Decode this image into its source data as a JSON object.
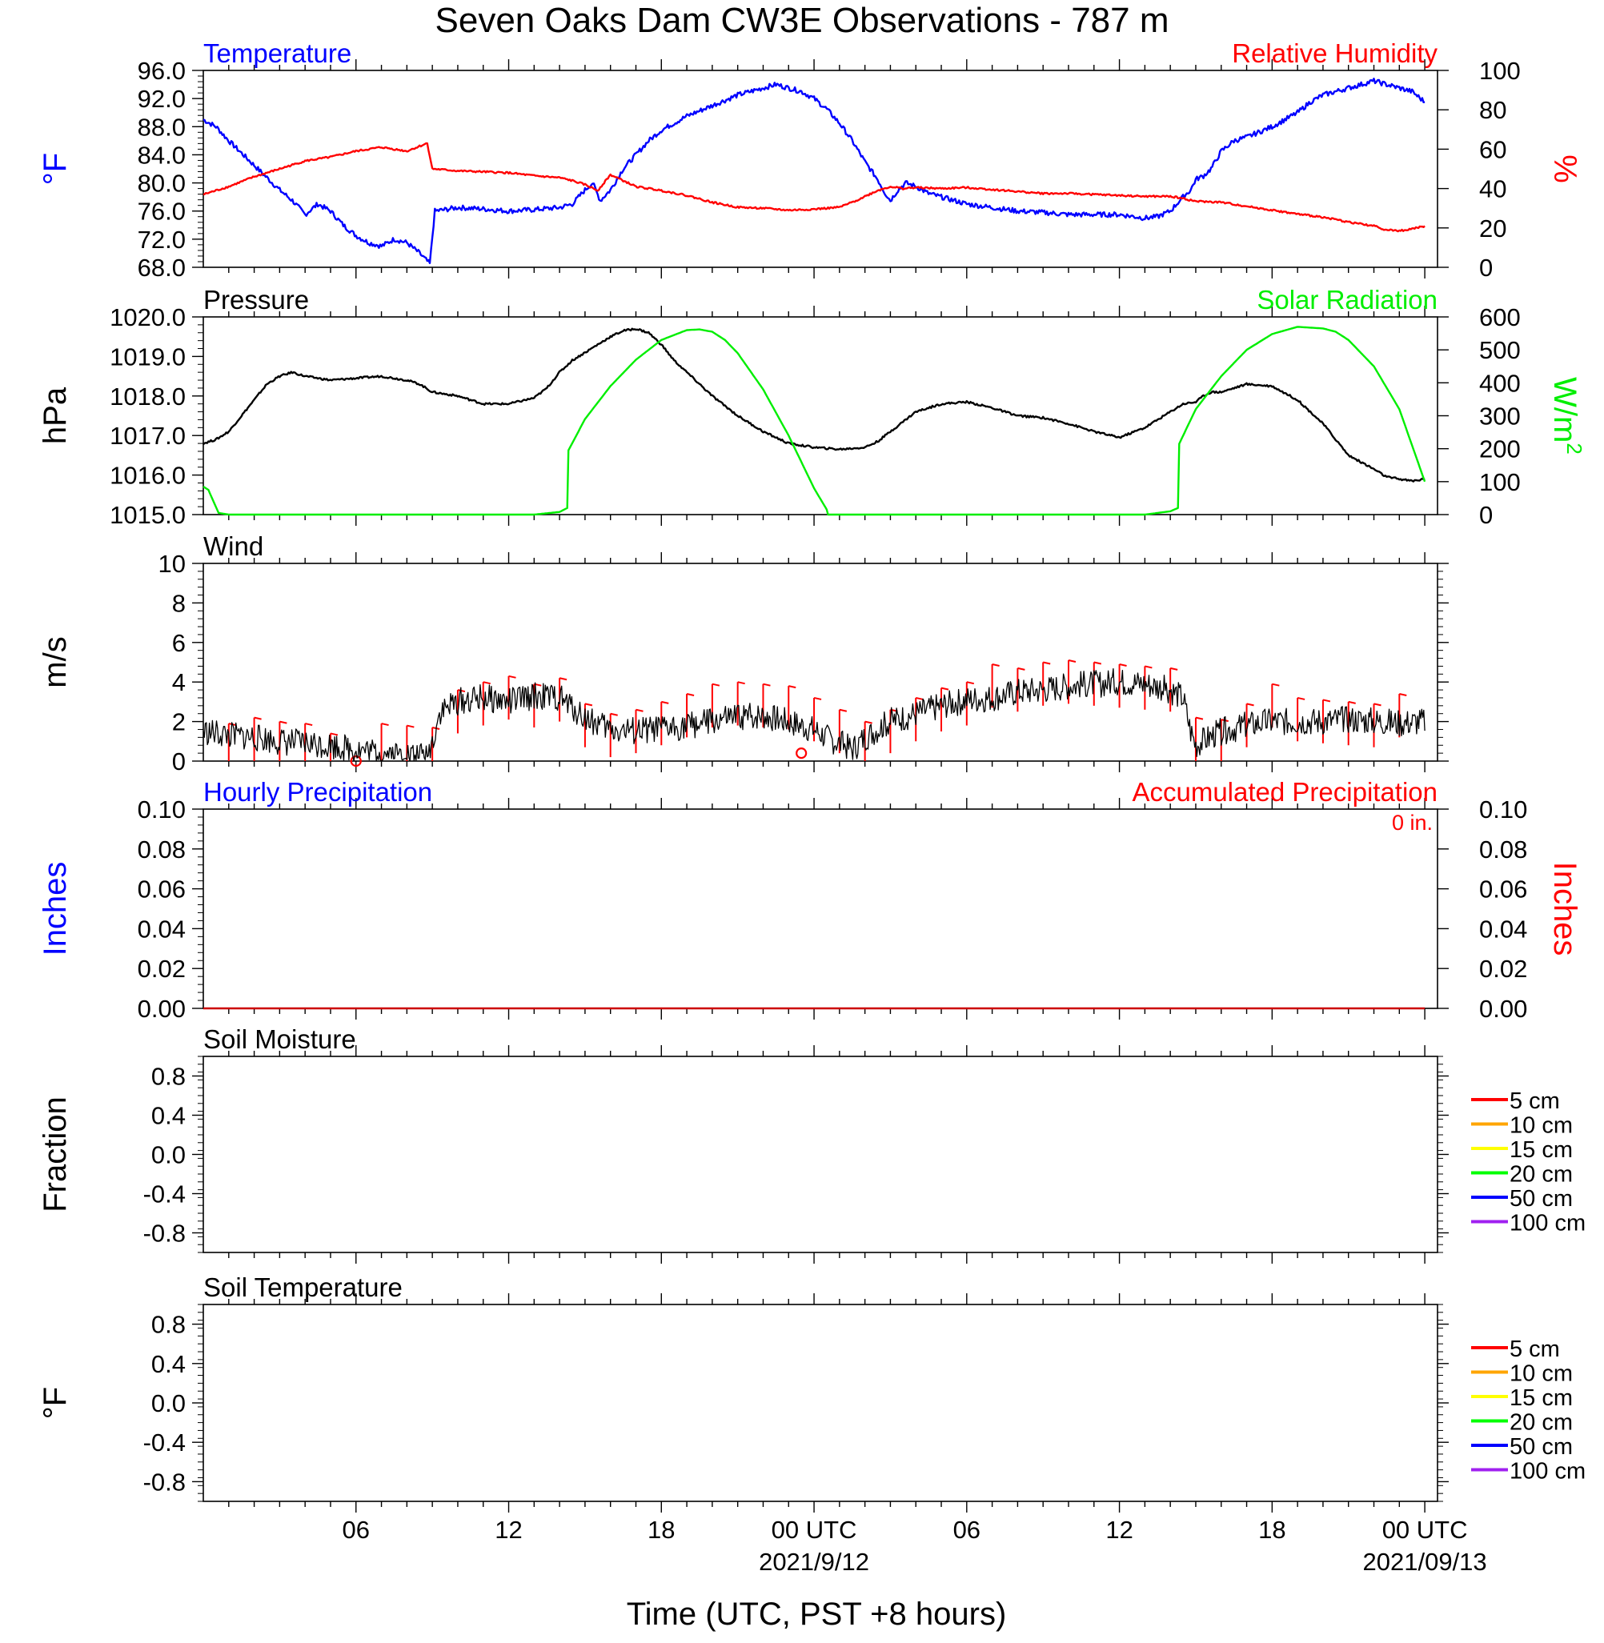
{
  "title": "Seven Oaks Dam CW3E Observations - 787 m",
  "xlabel": "Time (UTC, PST +8 hours)",
  "x_ticks": {
    "hours": [
      6,
      12,
      18,
      24,
      30,
      36,
      42,
      48
    ],
    "labels": [
      "06",
      "12",
      "18",
      "00 UTC",
      "06",
      "12",
      "18",
      "00 UTC"
    ],
    "dates": [
      {
        "hour": 24,
        "label": "2021/9/12"
      },
      {
        "hour": 48,
        "label": "2021/09/13"
      }
    ]
  },
  "colors": {
    "temperature": "#0000ff",
    "humidity": "#ff0000",
    "pressure": "#000000",
    "solar": "#00ee00",
    "wind": "#000000",
    "barb": "#ff0000",
    "precip_accum": "#cc0000"
  },
  "chart_data": [
    {
      "name": "temperature-humidity",
      "type": "line",
      "left_title": "Temperature",
      "right_title": "Relative Humidity",
      "ylabel_left": "°F",
      "ylabel_right": "%",
      "ylim_left": [
        68.0,
        96.0
      ],
      "yticks_left": [
        "68.0",
        "72.0",
        "76.0",
        "80.0",
        "84.0",
        "88.0",
        "92.0",
        "96.0"
      ],
      "ylim_right": [
        0,
        100
      ],
      "yticks_right": [
        "0",
        "20",
        "40",
        "60",
        "80",
        "100"
      ],
      "series": [
        {
          "axis": "left",
          "color_key": "temperature",
          "x": [
            0,
            0.5,
            1,
            2,
            3,
            3.5,
            4,
            4.5,
            5,
            5.5,
            6,
            6.5,
            7,
            7.5,
            8,
            8.5,
            8.9,
            9.1,
            9.5,
            10,
            11,
            12,
            13,
            14,
            14.5,
            15,
            15.3,
            15.6,
            16,
            16.5,
            17,
            17.5,
            18,
            19,
            20,
            21,
            22,
            22.5,
            23,
            23.5,
            24,
            24.5,
            25,
            25.5,
            26,
            26.5,
            26.8,
            27,
            27.3,
            27.6,
            28,
            28.5,
            29,
            30,
            31,
            32,
            33,
            34,
            35,
            36,
            37,
            37.5,
            38,
            38.5,
            38.8,
            39,
            39.3,
            39.6,
            40,
            40.5,
            41,
            42,
            43,
            43.5,
            44,
            45,
            45.5,
            46,
            46.5,
            47,
            47.5,
            48
          ],
          "values": [
            89.0,
            88.0,
            86.0,
            82.5,
            79.0,
            77.5,
            75.5,
            77.0,
            76.0,
            74.0,
            72.5,
            71.5,
            71.0,
            72.0,
            71.5,
            70.0,
            68.5,
            76.0,
            76.2,
            76.5,
            76.3,
            76.0,
            76.2,
            76.5,
            77.0,
            79.0,
            80.0,
            77.5,
            79.0,
            82.0,
            84.0,
            86.0,
            87.5,
            89.5,
            91.0,
            92.5,
            93.5,
            94.0,
            93.5,
            93.0,
            92.0,
            90.5,
            88.5,
            86.0,
            83.0,
            80.5,
            78.5,
            77.5,
            79.0,
            80.0,
            79.5,
            78.5,
            78.0,
            77.0,
            76.5,
            76.0,
            75.8,
            75.5,
            75.5,
            75.5,
            75.0,
            75.2,
            76.0,
            78.0,
            79.0,
            80.5,
            81.0,
            82.0,
            84.5,
            86.0,
            86.5,
            88.0,
            90.0,
            91.5,
            92.5,
            93.5,
            94.0,
            94.5,
            94.0,
            93.5,
            93.0,
            91.5
          ]
        },
        {
          "axis": "right",
          "color_key": "humidity",
          "x": [
            0,
            1,
            2,
            3,
            4,
            5,
            6,
            7,
            8,
            8.6,
            8.8,
            9,
            10,
            11,
            12,
            13,
            14,
            14.5,
            15,
            15.5,
            16,
            16.5,
            17,
            18,
            19,
            20,
            21,
            22,
            23,
            24,
            25,
            25.5,
            26,
            26.5,
            27,
            27.5,
            28,
            29,
            30,
            31,
            32,
            33,
            34,
            35,
            36,
            37,
            38,
            38.5,
            39,
            40,
            41,
            42,
            43,
            44,
            45,
            46,
            46.5,
            47,
            47.5,
            48
          ],
          "values": [
            37,
            41,
            46,
            50,
            54,
            56,
            59,
            61,
            59,
            62,
            63,
            50,
            49,
            48.5,
            48,
            46.5,
            45.5,
            44,
            42,
            39,
            47,
            44,
            41,
            39,
            36.5,
            33,
            30.5,
            30,
            29,
            29.5,
            30.5,
            33,
            36,
            39,
            41,
            40,
            40.5,
            40,
            40.5,
            39.5,
            38.5,
            37.5,
            37.5,
            37,
            36.5,
            36,
            36,
            35,
            33.5,
            33,
            31,
            29,
            27,
            25.5,
            23,
            21,
            19,
            18.5,
            19.5,
            21
          ]
        }
      ]
    },
    {
      "name": "pressure-solar",
      "type": "line",
      "left_title": "Pressure",
      "right_title": "Solar Radiation",
      "ylabel_left": "hPa",
      "ylabel_right": "W/m",
      "ylabel_right_sup": "2",
      "ylim_left": [
        1015.0,
        1020.0
      ],
      "yticks_left": [
        "1015.0",
        "1016.0",
        "1017.0",
        "1018.0",
        "1019.0",
        "1020.0"
      ],
      "ylim_right": [
        0,
        600
      ],
      "yticks_right": [
        "0",
        "100",
        "200",
        "300",
        "400",
        "500",
        "600"
      ],
      "series": [
        {
          "axis": "left",
          "color_key": "pressure",
          "x": [
            0,
            0.5,
            1,
            1.5,
            2,
            2.5,
            3,
            3.5,
            4,
            5,
            6,
            7,
            8,
            8.5,
            9,
            10,
            11,
            12,
            13,
            13.5,
            14,
            14.5,
            15,
            15.5,
            16,
            16.5,
            17,
            17.5,
            18,
            18.5,
            19,
            20,
            21,
            22,
            23,
            24,
            25,
            26,
            26.5,
            27,
            28,
            29,
            30,
            31,
            32,
            33,
            34,
            35,
            36,
            37,
            38,
            38.5,
            39,
            39.3,
            39.6,
            40,
            41,
            42,
            43,
            43.5,
            44,
            44.5,
            45,
            46,
            46.5,
            47,
            47.5,
            48
          ],
          "values": [
            1016.8,
            1016.9,
            1017.1,
            1017.5,
            1017.9,
            1018.3,
            1018.5,
            1018.6,
            1018.5,
            1018.4,
            1018.45,
            1018.5,
            1018.4,
            1018.3,
            1018.1,
            1018.0,
            1017.8,
            1017.8,
            1017.95,
            1018.2,
            1018.6,
            1018.9,
            1019.1,
            1019.3,
            1019.5,
            1019.65,
            1019.7,
            1019.6,
            1019.3,
            1018.9,
            1018.6,
            1018.0,
            1017.5,
            1017.1,
            1016.8,
            1016.7,
            1016.65,
            1016.7,
            1016.85,
            1017.1,
            1017.6,
            1017.8,
            1017.85,
            1017.7,
            1017.5,
            1017.45,
            1017.3,
            1017.1,
            1016.95,
            1017.2,
            1017.6,
            1017.8,
            1017.85,
            1018.0,
            1018.1,
            1018.1,
            1018.3,
            1018.25,
            1017.9,
            1017.6,
            1017.3,
            1016.9,
            1016.5,
            1016.15,
            1015.95,
            1015.9,
            1015.85,
            1015.9
          ]
        },
        {
          "axis": "right",
          "color_key": "solar",
          "x": [
            0,
            0.2,
            0.4,
            0.6,
            1,
            12,
            13,
            14,
            14.3,
            14.35,
            15,
            16,
            17,
            18,
            19,
            19.5,
            20,
            20.5,
            21,
            22,
            23,
            24,
            24.5,
            24.55,
            25,
            36,
            37,
            38,
            38.3,
            38.35,
            39,
            40,
            41,
            42,
            43,
            44,
            44.5,
            45,
            46,
            47,
            48
          ],
          "values": [
            85,
            75,
            40,
            5,
            0,
            0,
            0,
            8,
            20,
            195,
            290,
            390,
            470,
            530,
            560,
            562,
            555,
            530,
            490,
            380,
            240,
            80,
            15,
            0,
            0,
            0,
            0,
            10,
            20,
            215,
            320,
            420,
            500,
            548,
            570,
            565,
            555,
            530,
            450,
            320,
            100
          ]
        }
      ]
    },
    {
      "name": "wind",
      "type": "line",
      "left_title": "Wind",
      "ylabel_left": "m/s",
      "ylim_left": [
        0,
        10
      ],
      "yticks_left": [
        "0",
        "2",
        "4",
        "6",
        "8",
        "10"
      ],
      "series": [
        {
          "axis": "left",
          "color_key": "wind",
          "x": [
            0,
            1,
            2,
            3,
            4,
            5,
            6,
            7,
            8,
            8.8,
            9,
            9.3,
            10,
            11,
            12,
            13,
            14,
            15,
            16,
            17,
            18,
            19,
            20,
            21,
            22,
            23,
            24,
            24.5,
            25,
            25.5,
            26,
            27,
            28,
            29,
            30,
            31,
            32,
            33,
            34,
            35,
            36,
            37,
            38,
            38.5,
            38.8,
            39,
            39.3,
            40,
            41,
            42,
            43,
            44,
            45,
            46,
            47,
            48
          ],
          "values": [
            1.5,
            1.3,
            1.2,
            1.0,
            0.9,
            0.8,
            0.6,
            0.4,
            0.3,
            0.2,
            1.0,
            2.5,
            3.0,
            3.2,
            3.0,
            3.3,
            3.2,
            2.2,
            1.6,
            1.5,
            1.6,
            1.8,
            2.0,
            2.2,
            2.3,
            2.0,
            1.6,
            1.2,
            0.9,
            0.6,
            1.2,
            2.0,
            2.4,
            2.8,
            3.1,
            3.2,
            3.5,
            3.6,
            3.8,
            3.9,
            4.0,
            3.9,
            3.6,
            3.2,
            1.5,
            0.8,
            1.0,
            1.5,
            1.8,
            2.0,
            2.0,
            2.0,
            2.1,
            2.0,
            1.9,
            2.0
          ]
        }
      ],
      "barbs": {
        "x": [
          1,
          2,
          3,
          4,
          5,
          6,
          7,
          8,
          9,
          10,
          11,
          12,
          13,
          14,
          15,
          16,
          17,
          18,
          19,
          20,
          21,
          22,
          23,
          24,
          25,
          26,
          27,
          28,
          29,
          30,
          31,
          32,
          33,
          34,
          35,
          36,
          37,
          38,
          39,
          40,
          41,
          42,
          43,
          44,
          45,
          46,
          47
        ],
        "speed": [
          1.5,
          1.8,
          1.6,
          1.5,
          1.0,
          0.0,
          1.5,
          1.4,
          1.3,
          3.2,
          3.6,
          3.9,
          3.5,
          3.8,
          2.5,
          2.0,
          2.2,
          2.6,
          3.0,
          3.5,
          3.6,
          3.5,
          3.4,
          2.8,
          2.2,
          1.6,
          2.2,
          2.8,
          3.3,
          3.6,
          4.5,
          4.3,
          4.6,
          4.7,
          4.6,
          4.5,
          4.4,
          4.3,
          1.8,
          1.7,
          2.5,
          3.5,
          2.8,
          2.7,
          2.6,
          2.5,
          3.0
        ]
      },
      "calm_markers": {
        "x": [
          6,
          23.5
        ],
        "speed": [
          0.0,
          0.4
        ]
      }
    },
    {
      "name": "precipitation",
      "type": "line",
      "left_title": "Hourly Precipitation",
      "right_title": "Accumulated Precipitation",
      "annotation": "0 in.",
      "ylabel_left": "Inches",
      "ylabel_right": "Inches",
      "ylim_left": [
        0,
        0.1
      ],
      "yticks_left": [
        "0.00",
        "0.02",
        "0.04",
        "0.06",
        "0.08",
        "0.10"
      ],
      "ylim_right": [
        0,
        0.1
      ],
      "yticks_right": [
        "0.00",
        "0.02",
        "0.04",
        "0.06",
        "0.08",
        "0.10"
      ],
      "series": [
        {
          "axis": "right",
          "color_key": "precip_accum",
          "x": [
            0,
            48
          ],
          "values": [
            0,
            0
          ]
        }
      ]
    },
    {
      "name": "soil-moisture",
      "type": "line",
      "left_title": "Soil Moisture",
      "ylabel_left": "Fraction",
      "ylim_left": [
        -1.0,
        1.0
      ],
      "yticks_left": [
        "-0.8",
        "-0.4",
        "0.0",
        "0.4",
        "0.8"
      ],
      "legend": [
        {
          "label": "5 cm",
          "color": "#ff0000"
        },
        {
          "label": "10 cm",
          "color": "#ffa500"
        },
        {
          "label": "15 cm",
          "color": "#ffff00"
        },
        {
          "label": "20 cm",
          "color": "#00ff00"
        },
        {
          "label": "50 cm",
          "color": "#0000ff"
        },
        {
          "label": "100 cm",
          "color": "#a020f0"
        }
      ],
      "series": []
    },
    {
      "name": "soil-temperature",
      "type": "line",
      "left_title": "Soil Temperature",
      "ylabel_left": "°F",
      "ylim_left": [
        -1.0,
        1.0
      ],
      "yticks_left": [
        "-0.8",
        "-0.4",
        "0.0",
        "0.4",
        "0.8"
      ],
      "legend": [
        {
          "label": "5 cm",
          "color": "#ff0000"
        },
        {
          "label": "10 cm",
          "color": "#ffa500"
        },
        {
          "label": "15 cm",
          "color": "#ffff00"
        },
        {
          "label": "20 cm",
          "color": "#00ff00"
        },
        {
          "label": "50 cm",
          "color": "#0000ff"
        },
        {
          "label": "100 cm",
          "color": "#a020f0"
        }
      ],
      "series": []
    }
  ]
}
